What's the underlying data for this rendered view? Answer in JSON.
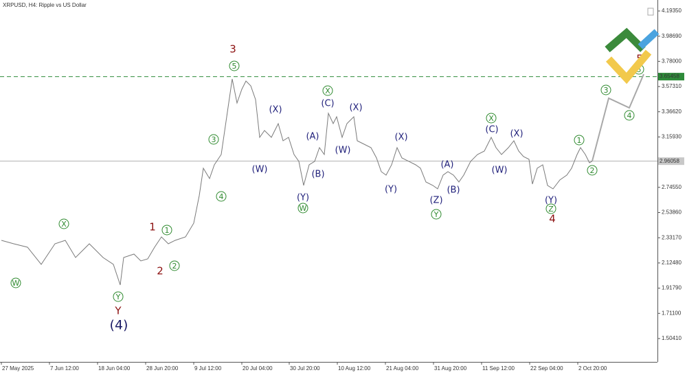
{
  "chart_data": {
    "type": "line",
    "title": "XRPUSD, H4:  Ripple vs US Dollar",
    "xlim": [
      -2,
      955
    ],
    "ylim": [
      1.3124,
      4.2837
    ],
    "xticks": [
      {
        "value": 0,
        "label": "27 May 2025"
      },
      {
        "value": 70,
        "label": "7 Jun 12:00"
      },
      {
        "value": 140,
        "label": "18 Jun 04:00"
      },
      {
        "value": 210,
        "label": "28 Jun 20:00"
      },
      {
        "value": 280,
        "label": "9 Jul 12:00"
      },
      {
        "value": 350,
        "label": "20 Jul 04:00"
      },
      {
        "value": 419,
        "label": "30 Jul 20:00"
      },
      {
        "value": 489,
        "label": "10 Aug 12:00"
      },
      {
        "value": 559,
        "label": "21 Aug 04:00"
      },
      {
        "value": 629,
        "label": "31 Aug 20:00"
      },
      {
        "value": 699,
        "label": "11 Sep 12:00"
      },
      {
        "value": 769,
        "label": "22 Sep 04:00"
      },
      {
        "value": 839,
        "label": "2 Oct 20:00"
      }
    ],
    "yticks": [
      {
        "value": 4.1935,
        "label": "4.19350"
      },
      {
        "value": 3.9869,
        "label": "3.98690"
      },
      {
        "value": 3.78,
        "label": "3.78000"
      },
      {
        "value": 3.5731,
        "label": "3.57310"
      },
      {
        "value": 3.3662,
        "label": "3.36620"
      },
      {
        "value": 3.1593,
        "label": "3.15930"
      },
      {
        "value": 2.7455,
        "label": "2.74550"
      },
      {
        "value": 2.5386,
        "label": "2.53860"
      },
      {
        "value": 2.3317,
        "label": "2.33170"
      },
      {
        "value": 2.1248,
        "label": "2.12480"
      },
      {
        "value": 1.9179,
        "label": "1.91790"
      },
      {
        "value": 1.711,
        "label": "1.71100"
      },
      {
        "value": 1.5041,
        "label": "1.50410"
      }
    ],
    "levels": [
      {
        "value": 3.65458,
        "color": "#2e8b3a"
      },
      {
        "value": 2.96058,
        "color": "#b0b0b0"
      }
    ],
    "series": [
      {
        "color": "#7a7a7a",
        "x": [
          0,
          18,
          38,
          58,
          78,
          93,
          108,
          128,
          148,
          163,
          173,
          178,
          193,
          203,
          213,
          223,
          233,
          243,
          253,
          268,
          280,
          288,
          294,
          303,
          310,
          320,
          328,
          336,
          343,
          350,
          356,
          363,
          370,
          376,
          383,
          393,
          403,
          410,
          418,
          426,
          433,
          440,
          448,
          456,
          463,
          470,
          476,
          483,
          488,
          496,
          503,
          513,
          518,
          528,
          538,
          546,
          553,
          560,
          568,
          576,
          583,
          593,
          603,
          610,
          618,
          628,
          635,
          643,
          650,
          658,
          666,
          673,
          683,
          693,
          703,
          713,
          720,
          728,
          738,
          746,
          753,
          760,
          768,
          773,
          780,
          788,
          795,
          803,
          813,
          823,
          830,
          838,
          843,
          850,
          856,
          860
        ],
        "values": [
          2.3104,
          2.2822,
          2.254,
          2.1131,
          2.2822,
          2.3104,
          2.1695,
          2.2822,
          2.1695,
          2.1131,
          1.9439,
          2.1695,
          2.1977,
          2.1413,
          2.1582,
          2.254,
          2.3386,
          2.2822,
          2.3104,
          2.3386,
          2.4514,
          2.6768,
          2.9024,
          2.8178,
          2.9306,
          3.0151,
          3.3252,
          3.6353,
          3.438,
          3.5508,
          3.6184,
          3.579,
          3.4662,
          3.1561,
          3.2125,
          3.1561,
          3.2689,
          3.1279,
          3.1561,
          3.0151,
          2.9588,
          2.7614,
          2.9306,
          2.9588,
          3.0715,
          3.0151,
          3.3534,
          3.2689,
          3.3252,
          3.1561,
          3.2689,
          3.3252,
          3.1279,
          3.0997,
          3.0715,
          2.987,
          2.8742,
          2.846,
          2.9306,
          3.0715,
          2.987,
          2.9588,
          2.9306,
          2.9024,
          2.7896,
          2.7614,
          2.7332,
          2.846,
          2.8742,
          2.846,
          2.7896,
          2.846,
          2.9588,
          3.0151,
          3.0433,
          3.1561,
          3.0715,
          3.0151,
          3.0715,
          3.1279,
          3.0433,
          2.9982,
          2.9757,
          2.7727,
          2.9024,
          2.9306,
          2.7614,
          2.7332,
          2.8065,
          2.846,
          2.9024,
          3.0151,
          3.0715,
          3.0151,
          2.9475,
          2.9606
        ]
      },
      {
        "color": "#a8a8a8",
        "x": [
          860,
          884,
          914,
          935
        ],
        "values": [
          2.9606,
          3.4775,
          3.3986,
          3.6748
        ]
      }
    ],
    "annotations": [
      {
        "text": "W",
        "x": 21,
        "y": 1.9608,
        "style": "circle"
      },
      {
        "text": "X",
        "x": 91,
        "y": 2.4457,
        "style": "circle"
      },
      {
        "text": "Y",
        "x": 170,
        "y": 1.8481,
        "style": "circle"
      },
      {
        "text": "1",
        "x": 241,
        "y": 2.395,
        "style": "circle"
      },
      {
        "text": "2",
        "x": 252,
        "y": 2.1018,
        "style": "circle"
      },
      {
        "text": "3",
        "x": 309,
        "y": 3.1392,
        "style": "circle"
      },
      {
        "text": "4",
        "x": 320,
        "y": 2.6712,
        "style": "circle"
      },
      {
        "text": "5",
        "x": 339,
        "y": 3.7425,
        "style": "circle"
      },
      {
        "text": "W",
        "x": 439,
        "y": 2.5754,
        "style": "circle"
      },
      {
        "text": "X",
        "x": 475,
        "y": 3.5395,
        "style": "circle"
      },
      {
        "text": "Y",
        "x": 633,
        "y": 2.5247,
        "style": "circle"
      },
      {
        "text": "X",
        "x": 713,
        "y": 3.314,
        "style": "circle"
      },
      {
        "text": "Z",
        "x": 800,
        "y": 2.5698,
        "style": "circle"
      },
      {
        "text": "1",
        "x": 841,
        "y": 3.1336,
        "style": "circle"
      },
      {
        "text": "2",
        "x": 860,
        "y": 2.8855,
        "style": "circle"
      },
      {
        "text": "3",
        "x": 880,
        "y": 3.5451,
        "style": "circle"
      },
      {
        "text": "4",
        "x": 914,
        "y": 3.3365,
        "style": "circle"
      },
      {
        "text": "5",
        "x": 928,
        "y": 3.7143,
        "style": "circle"
      },
      {
        "text": "3",
        "x": 337,
        "y": 3.8834,
        "style": "red"
      },
      {
        "text": "1",
        "x": 220,
        "y": 2.4232,
        "style": "red"
      },
      {
        "text": "2",
        "x": 231,
        "y": 2.0623,
        "style": "red"
      },
      {
        "text": "4",
        "x": 802,
        "y": 2.4908,
        "style": "red"
      },
      {
        "text": "Y",
        "x": 170,
        "y": 1.7354,
        "style": "red"
      },
      {
        "text": "5",
        "x": 929,
        "y": 3.8045,
        "style": "red"
      },
      {
        "text": "(4)",
        "x": 171,
        "y": 1.617,
        "style": "big"
      },
      {
        "text": "(X)",
        "x": 399,
        "y": 3.3872,
        "style": "paren"
      },
      {
        "text": "(W)",
        "x": 376,
        "y": 2.8967,
        "style": "paren"
      },
      {
        "text": "(Y)",
        "x": 439,
        "y": 2.6656,
        "style": "paren"
      },
      {
        "text": "(A)",
        "x": 453,
        "y": 3.1674,
        "style": "paren"
      },
      {
        "text": "(B)",
        "x": 461,
        "y": 2.8573,
        "style": "paren"
      },
      {
        "text": "(C)",
        "x": 475,
        "y": 3.438,
        "style": "paren"
      },
      {
        "text": "(X)",
        "x": 516,
        "y": 3.4042,
        "style": "paren"
      },
      {
        "text": "(W)",
        "x": 497,
        "y": 3.0546,
        "style": "paren"
      },
      {
        "text": "(X)",
        "x": 582,
        "y": 3.1617,
        "style": "paren"
      },
      {
        "text": "(Y)",
        "x": 567,
        "y": 2.7332,
        "style": "paren"
      },
      {
        "text": "(A)",
        "x": 649,
        "y": 2.9362,
        "style": "paren"
      },
      {
        "text": "(B)",
        "x": 658,
        "y": 2.7276,
        "style": "paren"
      },
      {
        "text": "(Z)",
        "x": 633,
        "y": 2.643,
        "style": "paren"
      },
      {
        "text": "(C)",
        "x": 714,
        "y": 3.2237,
        "style": "paren"
      },
      {
        "text": "(W)",
        "x": 725,
        "y": 2.8911,
        "style": "paren"
      },
      {
        "text": "(X)",
        "x": 750,
        "y": 3.1899,
        "style": "paren"
      },
      {
        "text": "(Y)",
        "x": 800,
        "y": 2.643,
        "style": "paren"
      }
    ]
  }
}
